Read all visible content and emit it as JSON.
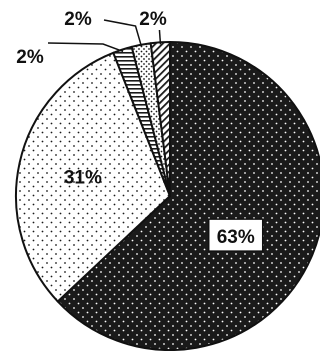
{
  "chart_data": {
    "type": "pie",
    "title": "",
    "slices": [
      {
        "label": "63%",
        "value": 63,
        "fill": "#1a1a1a",
        "pattern": "dark-dots"
      },
      {
        "label": "31%",
        "value": 31,
        "fill": "#ffffff",
        "pattern": "light-dots"
      },
      {
        "label": "2%",
        "value": 2,
        "fill": "#ffffff",
        "pattern": "horizontal-stripes"
      },
      {
        "label": "2%",
        "value": 2,
        "fill": "#ffffff",
        "pattern": "dense-dots"
      },
      {
        "label": "2%",
        "value": 2,
        "fill": "#ffffff",
        "pattern": "diagonal-stripes"
      }
    ],
    "start_angle_deg": 0,
    "direction": "clockwise",
    "legend": "none"
  },
  "colors": {
    "outline": "#111111",
    "dark_fill": "#1a1a1a",
    "light_fill": "#ffffff"
  }
}
